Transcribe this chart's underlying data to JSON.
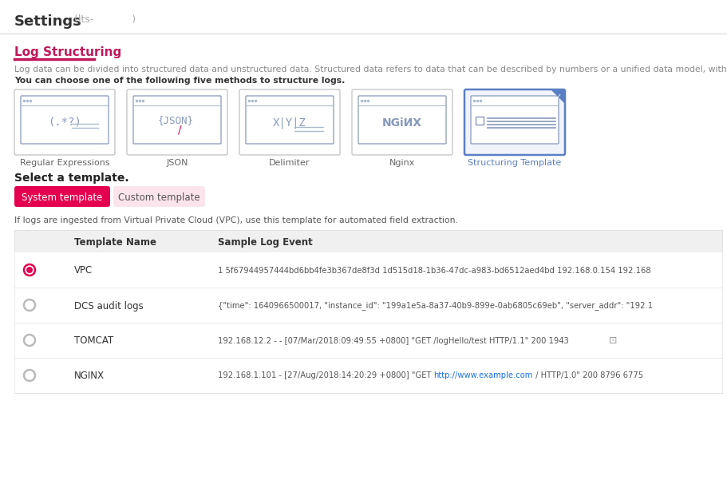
{
  "title": "Settings",
  "title_subtitle": "(lts-            )",
  "section_title": "Log Structuring",
  "desc1": "Log data can be divided into structured data and unstructured data. Structured data refers to data that can be described by numbers or a unified data model, with",
  "desc2": "You can choose one of the following five methods to structure logs.",
  "methods": [
    "Regular Expressions",
    "JSON",
    "Delimiter",
    "Nginx",
    "Structuring Template"
  ],
  "selected_method": 4,
  "select_label": "Select a template.",
  "tab_system": "System template",
  "tab_custom": "Custom template",
  "note": "If logs are ingested from Virtual Private Cloud (VPC), use this template for automated field extraction.",
  "table_headers": [
    "",
    "Template Name",
    "Sample Log Event"
  ],
  "table_rows": [
    {
      "selected": true,
      "name": "VPC",
      "event": "1 5f67944957444bd6bb4fe3b367de8f3d 1d515d18-1b36-47dc-a983-bd6512aed4bd 192.168.0.154 192.168"
    },
    {
      "selected": false,
      "name": "DCS audit logs",
      "event": "{\"time\": 1640966500017, \"instance_id\": \"199a1e5a-8a37-40b9-899e-0ab6805c69eb\", \"server_addr\": \"192.1"
    },
    {
      "selected": false,
      "name": "TOMCAT",
      "event": "192.168.12.2 - - [07/Mar/2018:09:49:55 +0800] \"GET /logHello/test HTTP/1.1\" 200 1943"
    },
    {
      "selected": false,
      "name": "NGINX",
      "event": "192.168.1.101 - [27/Aug/2018:14:20:29 +0800] \"GET http://www.example.com / HTTP/1.0\" 200 8796 6775"
    }
  ],
  "nginx_parts": [
    {
      "text": "192.168.1.101 - [27/Aug/2018:14:20:29 +0800] \"GET ",
      "color": "#555555"
    },
    {
      "text": "http://www.example.com",
      "color": "#1a73e8"
    },
    {
      "text": " / HTTP/1.0\" 200 8796 6775",
      "color": "#555555"
    }
  ],
  "bg_color": "#ffffff",
  "section_title_color": "#c0185a",
  "section_underline_color": "#c0185a",
  "desc1_color": "#888888",
  "desc2_color": "#333333",
  "tab_active_bg": "#e5004f",
  "tab_active_fg": "#ffffff",
  "tab_inactive_bg": "#fce4ec",
  "tab_inactive_fg": "#555555",
  "table_header_bg": "#f0f0f0",
  "table_header_fg": "#333333",
  "table_row_bg": "#ffffff",
  "table_row_sel_bg": "#ffffff",
  "table_divider_color": "#e0e0e0",
  "selected_radio_color": "#e5004f",
  "unselected_radio_color": "#bbbbbb",
  "link_color": "#1a73e8",
  "note_color": "#555555",
  "selected_box_border": "#5b7fc4",
  "selected_box_bg": "#f0f3fa",
  "unselected_box_border": "#c8c8c8",
  "unselected_box_bg": "#ffffff",
  "checkmark_bg": "#5b7fc4",
  "title_color": "#333333",
  "method_label_sel_color": "#5b7fc4",
  "method_label_unsel_color": "#666666",
  "header_line_color": "#dddddd",
  "select_label_color": "#222222",
  "icon_color": "#8899bb",
  "icon_line_color": "#aabbcc"
}
